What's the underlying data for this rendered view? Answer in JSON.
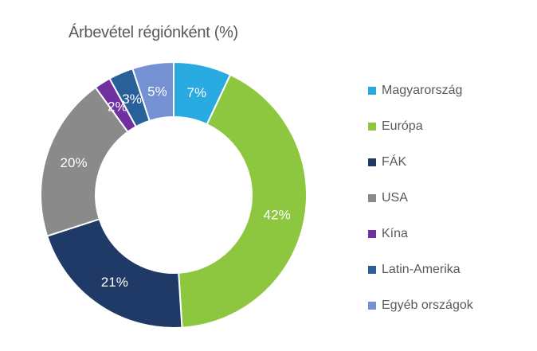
{
  "chart": {
    "title_color": "#595959",
    "legend_text_color": "#595959",
    "slice_label_color": "#ffffff",
    "slice_border_color": "#ffffff",
    "background": "#ffffff"
  },
  "chart_data": {
    "type": "pie",
    "subtype": "donut",
    "title": "Árbevétel régiónként (%)",
    "unit": "%",
    "total": 100,
    "direction": "clockwise",
    "start_angle_deg": 0,
    "hole_ratio": 0.59,
    "legend_position": "right",
    "grid": false,
    "categories": [
      "Magyarország",
      "Európa",
      "FÁK",
      "USA",
      "Kína",
      "Latin-Amerika",
      "Egyéb országok"
    ],
    "values": [
      7,
      42,
      21,
      20,
      2,
      3,
      5
    ],
    "data_labels": [
      "7%",
      "42%",
      "21%",
      "20%",
      "2%",
      "3%",
      "5%"
    ],
    "colors": [
      "#29ABE2",
      "#8DC63F",
      "#1F3A66",
      "#8A8A8A",
      "#7030A0",
      "#2A6099",
      "#7491D4"
    ]
  }
}
